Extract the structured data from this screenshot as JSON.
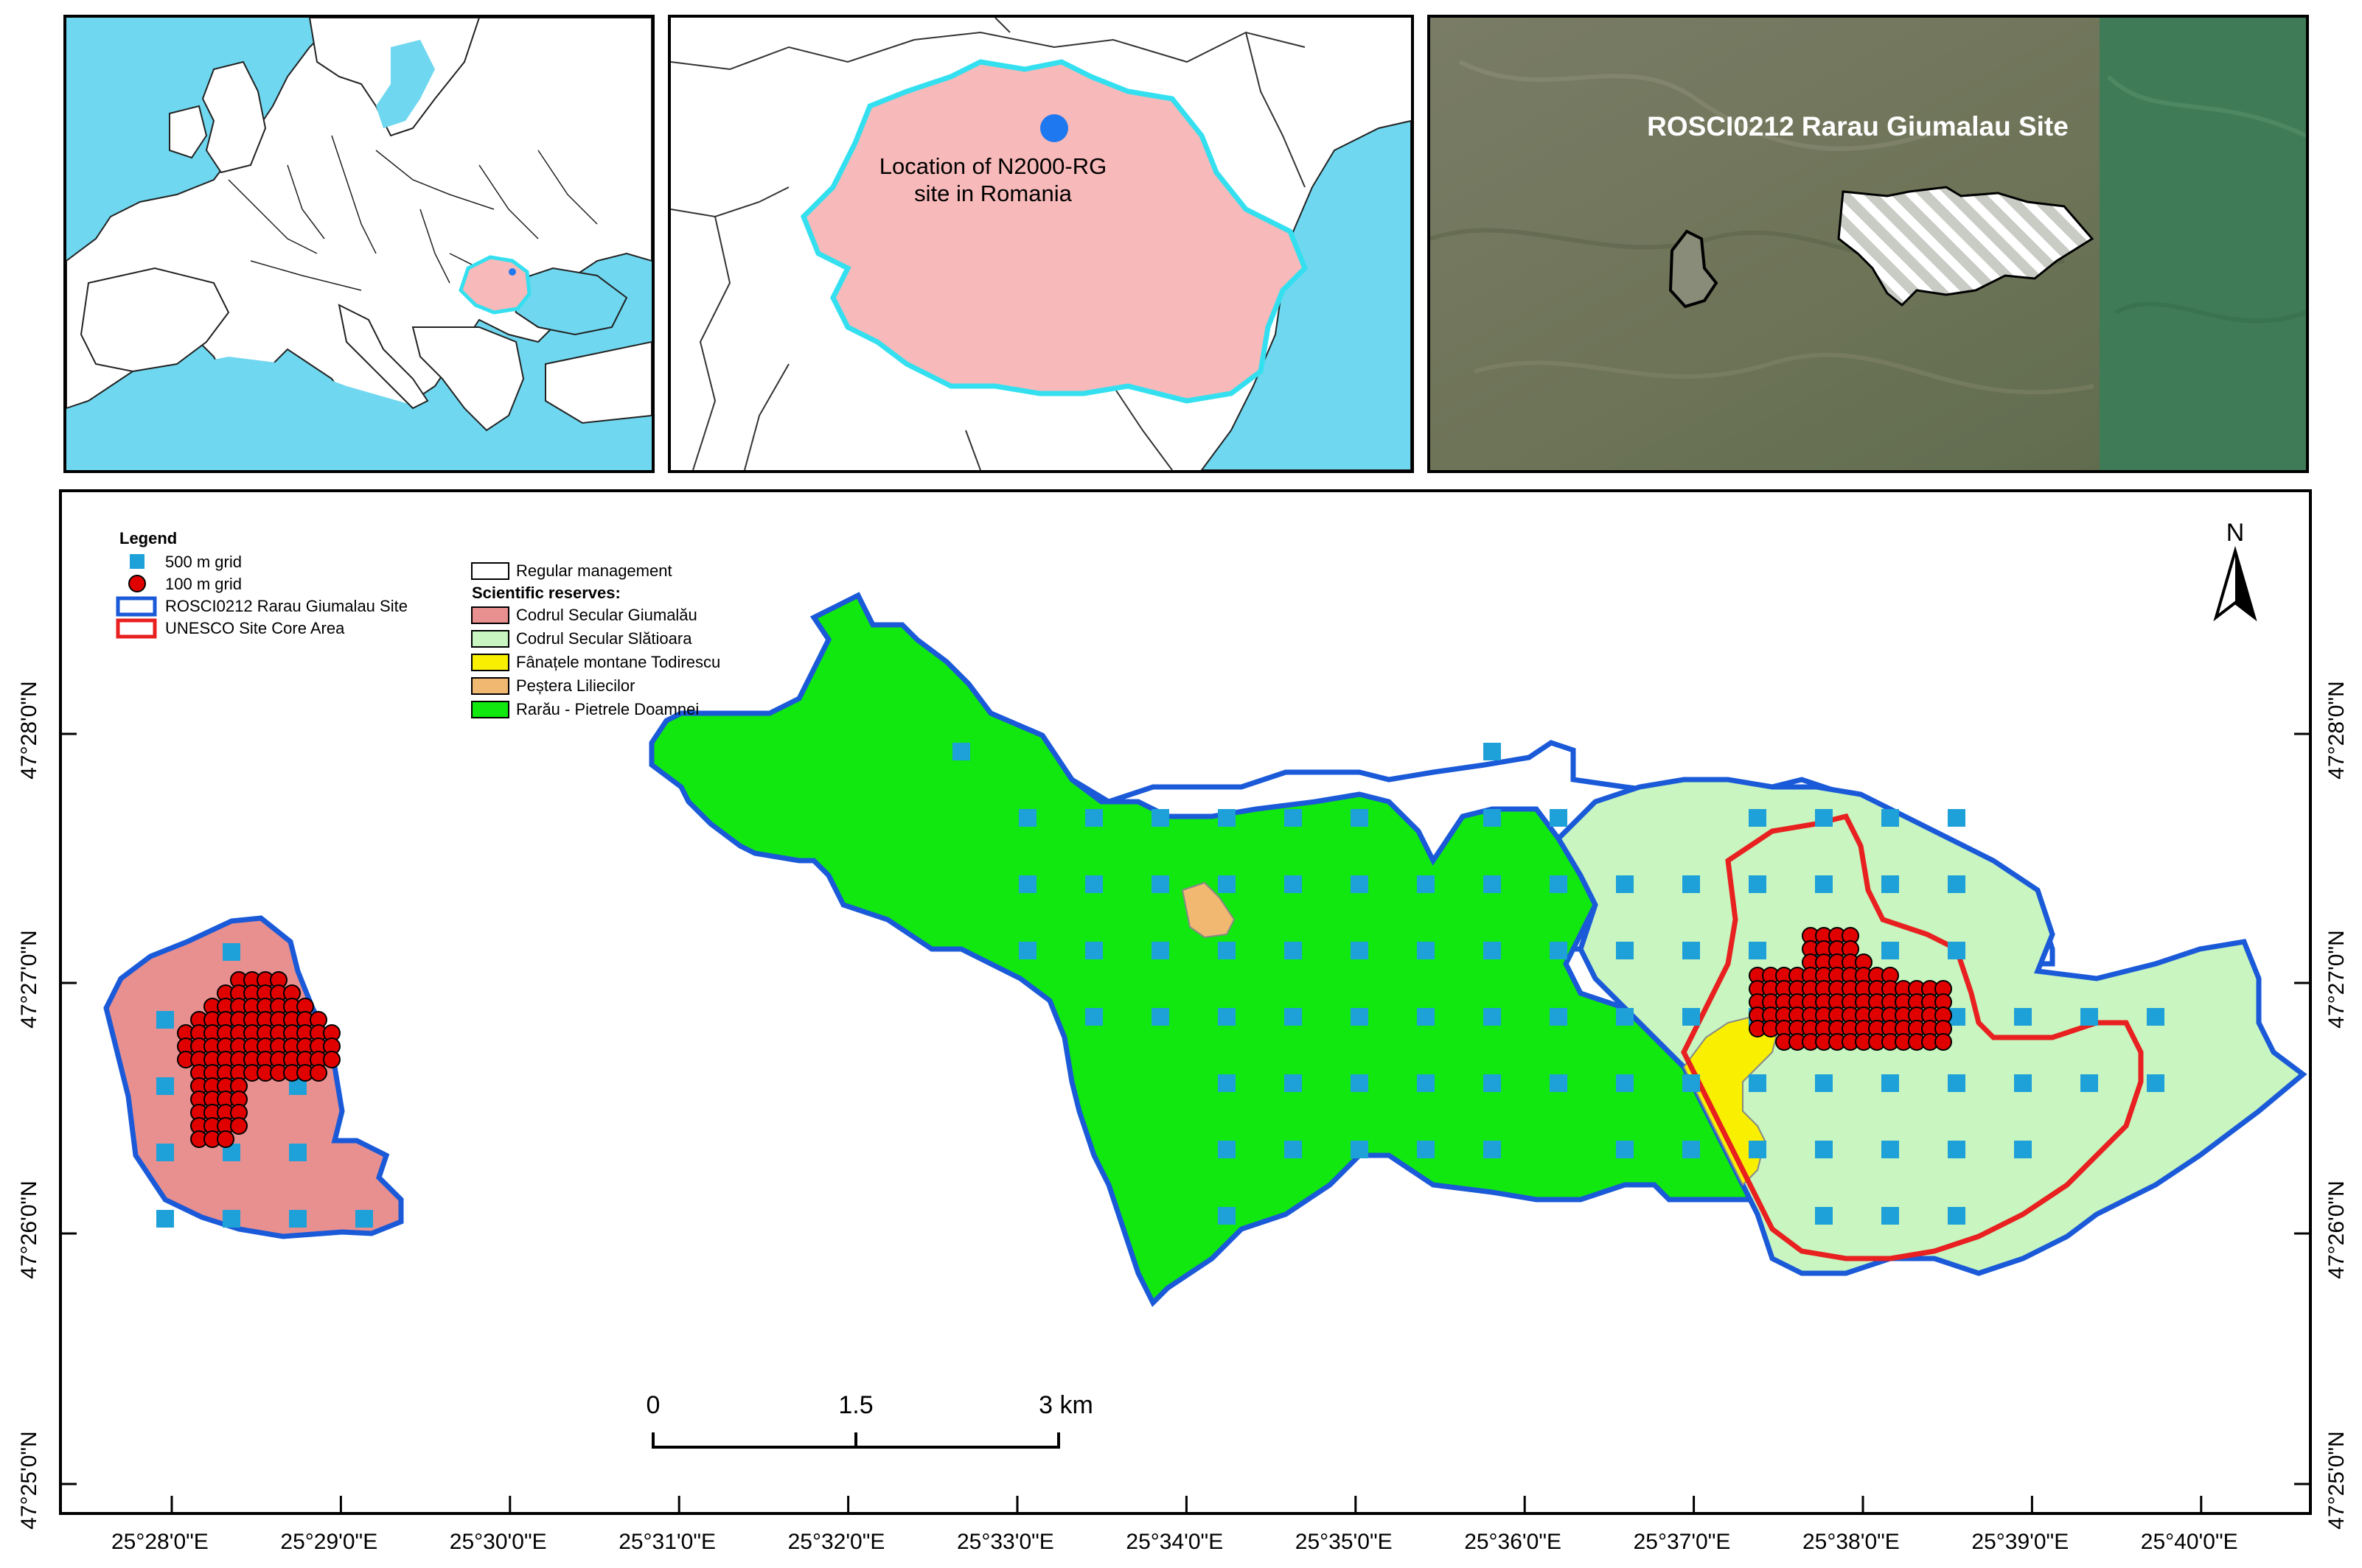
{
  "insets": {
    "europe": {
      "colors": {
        "sea": "#6fd7ef",
        "land": "#ffffff",
        "romania": "#f7b9b9",
        "outline": "#34e0f0"
      }
    },
    "romania": {
      "label_line1": "Location of N2000-RG",
      "label_line2": "site in Romania",
      "colors": {
        "country": "#f7b9b9",
        "outline": "#34e0f0",
        "marker": "#1e78f0"
      }
    },
    "satellite": {
      "title": "ROSCI0212 Rarau Giumalau Site"
    }
  },
  "legend": {
    "title": "Legend",
    "items_col1": [
      {
        "label": "500 m grid",
        "symbol": "square",
        "color": "#1ea0d8"
      },
      {
        "label": "100 m grid",
        "symbol": "circle",
        "color": "#e00000"
      },
      {
        "label": "ROSCI0212 Rarau Giumalau Site",
        "symbol": "outline",
        "color": "#1a5ad8"
      },
      {
        "label": "UNESCO Site Core Area",
        "symbol": "outline",
        "color": "#e82020"
      }
    ],
    "regular_management": "Regular management",
    "reserves_heading": "Scientific reserves:",
    "reserves": [
      {
        "label": "Codrul Secular Giumalău",
        "color": "#e89090"
      },
      {
        "label": "Codrul Secular Slătioara",
        "color": "#c8f5c0"
      },
      {
        "label": "Fânațele montane Todirescu",
        "color": "#f8f000"
      },
      {
        "label": "Peștera Liliecilor",
        "color": "#f0b870"
      },
      {
        "label": "Rarău - Pietrele Doamnei",
        "color": "#10e810"
      }
    ]
  },
  "north_arrow": {
    "label": "N"
  },
  "scale_bar": {
    "labels": [
      "0",
      "1.5",
      "3 km"
    ]
  },
  "axes": {
    "longitude_ticks": [
      "25°28'0\"E",
      "25°29'0\"E",
      "25°30'0\"E",
      "25°31'0\"E",
      "25°32'0\"E",
      "25°33'0\"E",
      "25°34'0\"E",
      "25°35'0\"E",
      "25°36'0\"E",
      "25°37'0\"E",
      "25°38'0\"E",
      "25°39'0\"E",
      "25°40'0\"E"
    ],
    "latitude_ticks_left": [
      "47°28'0\"N",
      "47°27'0\"N",
      "47°26'0\"N",
      "47°25'0\"N"
    ],
    "latitude_ticks_right": [
      "47°28'0\"N",
      "47°27'0\"N",
      "47°26'0\"N",
      "47°25'0\"N"
    ]
  }
}
